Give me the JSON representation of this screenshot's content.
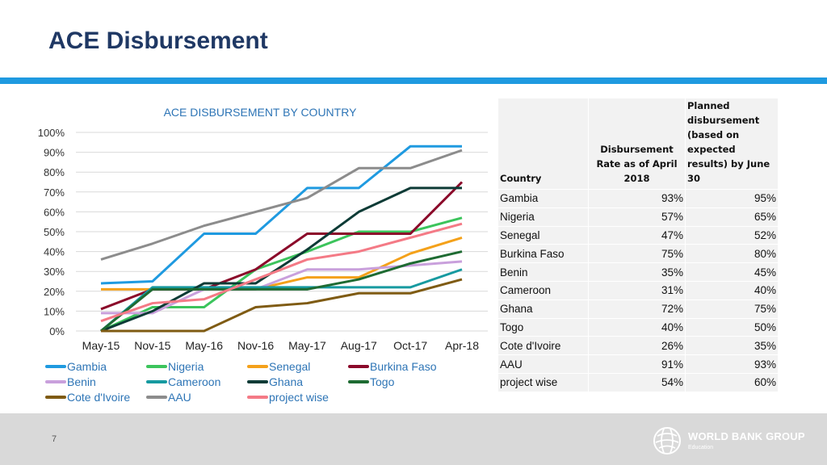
{
  "page": {
    "title": "ACE Disbursement",
    "page_number": "7"
  },
  "logo": {
    "name": "WORLD BANK GROUP",
    "sub": "Education"
  },
  "colors": {
    "accent": "#1f9ae0",
    "title": "#1f3864",
    "chart_title": "#2e75b6"
  },
  "chart_data": {
    "type": "line",
    "title": "ACE DISBURSEMENT BY COUNTRY",
    "categories": [
      "May-15",
      "Nov-15",
      "May-16",
      "Nov-16",
      "May-17",
      "Aug-17",
      "Oct-17",
      "Apr-18"
    ],
    "yticks": [
      "0%",
      "10%",
      "20%",
      "30%",
      "40%",
      "50%",
      "60%",
      "70%",
      "80%",
      "90%",
      "100%"
    ],
    "ylim": [
      0,
      100
    ],
    "grid": true,
    "legend_position": "bottom",
    "series": [
      {
        "name": "Gambia",
        "color": "#1f9ae0",
        "values": [
          24,
          25,
          49,
          49,
          72,
          72,
          93,
          93
        ]
      },
      {
        "name": "Nigeria",
        "color": "#3cc45c",
        "values": [
          0,
          12,
          12,
          31,
          40,
          50,
          50,
          57
        ]
      },
      {
        "name": "Senegal",
        "color": "#f4a11a",
        "values": [
          21,
          21,
          21,
          21,
          27,
          27,
          39,
          47
        ]
      },
      {
        "name": "Burkina Faso",
        "color": "#8b0a2a",
        "values": [
          11,
          21,
          21,
          31,
          49,
          49,
          49,
          75
        ]
      },
      {
        "name": "Benin",
        "color": "#c9a0dc",
        "values": [
          9,
          9,
          21,
          21,
          31,
          31,
          33,
          35
        ]
      },
      {
        "name": "Cameroon",
        "color": "#179aa0",
        "values": [
          0,
          22,
          22,
          22,
          22,
          22,
          22,
          31
        ]
      },
      {
        "name": "Ghana",
        "color": "#0d3b36",
        "values": [
          0,
          10,
          24,
          24,
          41,
          60,
          72,
          72
        ]
      },
      {
        "name": "Togo",
        "color": "#1e6b32",
        "values": [
          0,
          21,
          21,
          21,
          21,
          26,
          34,
          40
        ]
      },
      {
        "name": "Cote d'Ivoire",
        "color": "#7f5b13",
        "values": [
          0,
          0,
          0,
          12,
          14,
          19,
          19,
          26
        ]
      },
      {
        "name": "AAU",
        "color": "#8c8c8c",
        "values": [
          36,
          44,
          53,
          60,
          67,
          82,
          82,
          91
        ]
      },
      {
        "name": "project wise",
        "color": "#f47a86",
        "values": [
          5,
          14,
          16,
          26,
          36,
          40,
          47,
          54
        ]
      }
    ]
  },
  "table": {
    "headers": [
      "Country",
      "Disbursement Rate as of April 2018",
      "Planned disbursement (based on expected results) by June 30"
    ],
    "rows": [
      [
        "Gambia",
        "93%",
        "95%"
      ],
      [
        "Nigeria",
        "57%",
        "65%"
      ],
      [
        "Senegal",
        "47%",
        "52%"
      ],
      [
        "Burkina Faso",
        "75%",
        "80%"
      ],
      [
        "Benin",
        "35%",
        "45%"
      ],
      [
        "Cameroon",
        "31%",
        "40%"
      ],
      [
        "Ghana",
        "72%",
        "75%"
      ],
      [
        "Togo",
        "40%",
        "50%"
      ],
      [
        "Cote d'Ivoire",
        "26%",
        "35%"
      ],
      [
        "AAU",
        "91%",
        "93%"
      ],
      [
        "project wise",
        "54%",
        "60%"
      ]
    ]
  }
}
